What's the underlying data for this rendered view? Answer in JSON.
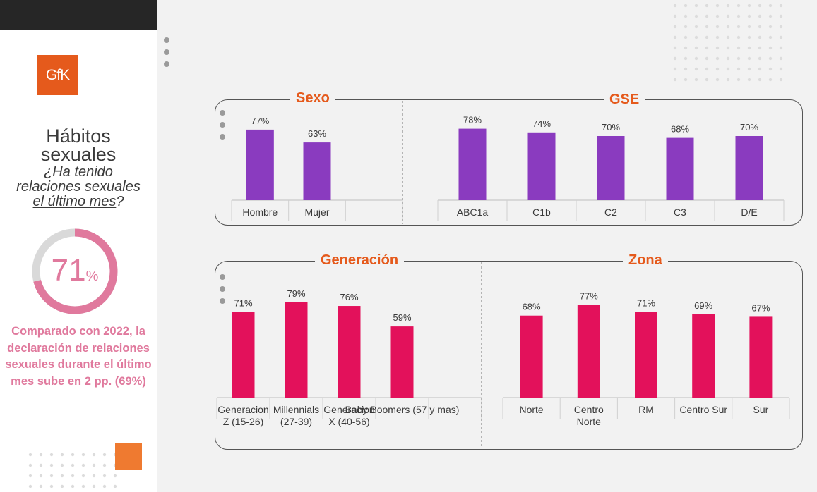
{
  "sidebar": {
    "logo": "GfK",
    "title_line1": "Hábitos",
    "title_line2": "sexuales",
    "question_line1": "¿Ha tenido",
    "question_line2": "relaciones sexuales",
    "question_line3a": "el último mes",
    "question_line3b": "?",
    "overall_value": "71",
    "overall_unit": "%",
    "overall_fraction": 0.71,
    "comparison": "Comparado con 2022, la declaración de relaciones sexuales durante el último mes sube en 2 pp. (69%)"
  },
  "colors": {
    "purple": "#8a3bbf",
    "pink": "#e3115b",
    "accent_orange": "#e55a1c",
    "donut_pink": "#e0799d",
    "donut_gray": "#d9d9d9"
  },
  "chart_data": [
    {
      "type": "bar",
      "title": "Sexo",
      "categories": [
        "Hombre",
        "Mujer"
      ],
      "values": [
        77,
        63
      ],
      "value_labels": [
        "77%",
        "63%"
      ],
      "ylim": [
        0,
        100
      ]
    },
    {
      "type": "bar",
      "title": "GSE",
      "categories": [
        "ABC1a",
        "C1b",
        "C2",
        "C3",
        "D/E"
      ],
      "values": [
        78,
        74,
        70,
        68,
        70
      ],
      "value_labels": [
        "78%",
        "74%",
        "70%",
        "68%",
        "70%"
      ],
      "ylim": [
        0,
        100
      ]
    },
    {
      "type": "bar",
      "title": "Generación",
      "categories": [
        "Generacion Z (15-26)",
        "Millennials (27-39)",
        "Generacion X (40-56)",
        "Baby Boomers (57 y mas)"
      ],
      "values": [
        71,
        79,
        76,
        59
      ],
      "value_labels": [
        "71%",
        "79%",
        "76%",
        "59%"
      ],
      "ylim": [
        0,
        100
      ]
    },
    {
      "type": "bar",
      "title": "Zona",
      "categories": [
        "Norte",
        "Centro Norte",
        "RM",
        "Centro Sur",
        "Sur"
      ],
      "values": [
        68,
        77,
        71,
        69,
        67
      ],
      "value_labels": [
        "68%",
        "77%",
        "71%",
        "69%",
        "67%"
      ],
      "ylim": [
        0,
        100
      ]
    }
  ]
}
